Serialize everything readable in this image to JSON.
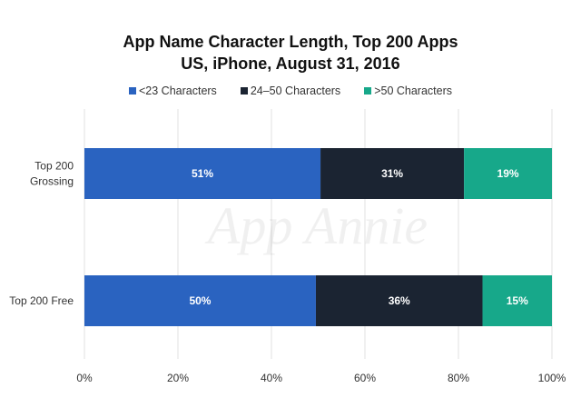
{
  "chart_data": {
    "type": "bar",
    "orientation": "horizontal",
    "stacked": true,
    "title": "App Name Character Length, Top 200 Apps",
    "subtitle": "US, iPhone, August 31, 2016",
    "categories": [
      "Top 200 Grossing",
      "Top 200 Free"
    ],
    "category_lines": [
      [
        "Top 200",
        "Grossing"
      ],
      [
        "Top 200 Free"
      ]
    ],
    "series": [
      {
        "name": "<23 Characters",
        "color": "#2a63c0",
        "values": [
          51,
          50
        ],
        "labels": [
          "51%",
          "50%"
        ]
      },
      {
        "name": "24–50 Characters",
        "color": "#1b2432",
        "values": [
          31,
          36
        ],
        "labels": [
          "31%",
          "36%"
        ]
      },
      {
        "name": ">50 Characters",
        "color": "#17a88a",
        "values": [
          19,
          15
        ],
        "labels": [
          "19%",
          "15%"
        ]
      }
    ],
    "xlim": [
      0,
      100
    ],
    "xticks": [
      "0%",
      "20%",
      "40%",
      "60%",
      "80%",
      "100%"
    ],
    "xlabel": "",
    "ylabel": "",
    "grid": true,
    "legend_position": "top",
    "watermark": "App Annie"
  }
}
